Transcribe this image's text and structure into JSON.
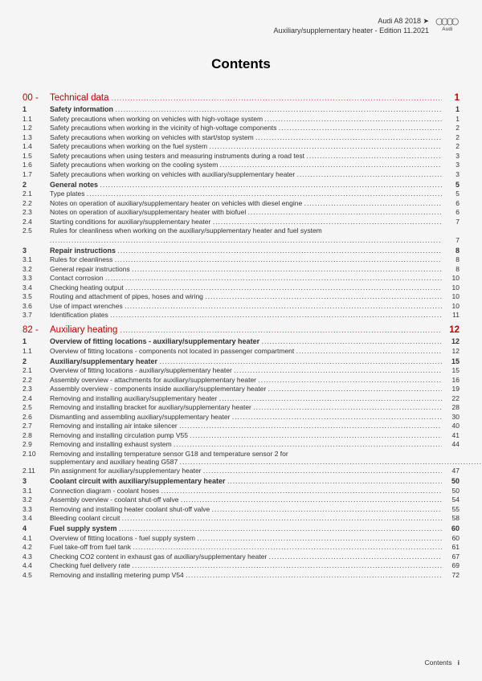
{
  "header": {
    "line1": "Audi A8 2018 ➤",
    "line2": "Auxiliary/supplementary heater - Edition 11.2021",
    "logo_label": "Audi"
  },
  "title": "Contents",
  "chapters": [
    {
      "label": "00 -",
      "title": "Technical data",
      "page": "1",
      "sections": [
        {
          "num": "1",
          "title": "Safety information",
          "page": "1",
          "items": [
            {
              "num": "1.1",
              "title": "Safety precautions when working on vehicles with high-voltage system",
              "page": "1"
            },
            {
              "num": "1.2",
              "title": "Safety precautions when working in the vicinity of high-voltage components",
              "page": "2"
            },
            {
              "num": "1.3",
              "title": "Safety precautions when working on vehicles with start/stop system",
              "page": "2"
            },
            {
              "num": "1.4",
              "title": "Safety precautions when working on the fuel system",
              "page": "2"
            },
            {
              "num": "1.5",
              "title": "Safety precautions when using testers and measuring instruments during a road test",
              "page": "3"
            },
            {
              "num": "1.6",
              "title": "Safety precautions when working on the cooling system",
              "page": "3"
            },
            {
              "num": "1.7",
              "title": "Safety precautions when working on vehicles with auxiliary/supplementary heater",
              "page": "3"
            }
          ]
        },
        {
          "num": "2",
          "title": "General notes",
          "page": "5",
          "items": [
            {
              "num": "2.1",
              "title": "Type plates",
              "page": "5"
            },
            {
              "num": "2.2",
              "title": "Notes on operation of auxiliary/supplementary heater on vehicles with diesel engine",
              "page": "6"
            },
            {
              "num": "2.3",
              "title": "Notes on operation of auxiliary/supplementary heater with biofuel",
              "page": "6"
            },
            {
              "num": "2.4",
              "title": "Starting conditions for auxiliary/supplementary heater",
              "page": "7"
            },
            {
              "num": "2.5",
              "title": "Rules for cleanliness when working on the auxiliary/supplementary heater and fuel system",
              "page": "7",
              "wrap": true
            }
          ]
        },
        {
          "num": "3",
          "title": "Repair instructions",
          "page": "8",
          "items": [
            {
              "num": "3.1",
              "title": "Rules for cleanliness",
              "page": "8"
            },
            {
              "num": "3.2",
              "title": "General repair instructions",
              "page": "8"
            },
            {
              "num": "3.3",
              "title": "Contact corrosion",
              "page": "10"
            },
            {
              "num": "3.4",
              "title": "Checking heating output",
              "page": "10"
            },
            {
              "num": "3.5",
              "title": "Routing and attachment of pipes, hoses and wiring",
              "page": "10"
            },
            {
              "num": "3.6",
              "title": "Use of impact wrenches",
              "page": "10"
            },
            {
              "num": "3.7",
              "title": "Identification plates",
              "page": "11"
            }
          ]
        }
      ]
    },
    {
      "label": "82 -",
      "title": "Auxiliary heating",
      "page": "12",
      "sections": [
        {
          "num": "1",
          "title": "Overview of fitting locations - auxiliary/supplementary heater",
          "page": "12",
          "items": [
            {
              "num": "1.1",
              "title": "Overview of fitting locations - components not located in passenger compartment",
              "page": "12"
            }
          ]
        },
        {
          "num": "2",
          "title": "Auxiliary/supplementary heater",
          "page": "15",
          "items": [
            {
              "num": "2.1",
              "title": "Overview of fitting locations - auxiliary/supplementary heater",
              "page": "15"
            },
            {
              "num": "2.2",
              "title": "Assembly overview - attachments for auxiliary/supplementary heater",
              "page": "16"
            },
            {
              "num": "2.3",
              "title": "Assembly overview - components inside auxiliary/supplementary heater",
              "page": "19"
            },
            {
              "num": "2.4",
              "title": "Removing and installing auxiliary/supplementary heater",
              "page": "22"
            },
            {
              "num": "2.5",
              "title": "Removing and installing bracket for auxiliary/supplementary heater",
              "page": "28"
            },
            {
              "num": "2.6",
              "title": "Dismantling and assembling auxiliary/supplementary heater",
              "page": "30"
            },
            {
              "num": "2.7",
              "title": "Removing and installing air intake silencer",
              "page": "40"
            },
            {
              "num": "2.8",
              "title": "Removing and installing circulation pump V55",
              "page": "41"
            },
            {
              "num": "2.9",
              "title": "Removing and installing exhaust system",
              "page": "44"
            },
            {
              "num": "2.10",
              "title": "Removing and installing temperature sensor G18 and temperature sensor 2 for supplementary and auxiliary heating G587",
              "page": "45",
              "wrap": true,
              "split": [
                "Removing and installing temperature sensor G18 and temperature sensor 2 for",
                "supplementary and auxiliary heating G587"
              ]
            },
            {
              "num": "2.11",
              "title": "Pin assignment for auxiliary/supplementary heater",
              "page": "47"
            }
          ]
        },
        {
          "num": "3",
          "title": "Coolant circuit with auxiliary/supplementary heater",
          "page": "50",
          "items": [
            {
              "num": "3.1",
              "title": "Connection diagram - coolant hoses",
              "page": "50"
            },
            {
              "num": "3.2",
              "title": "Assembly overview - coolant shut-off valve",
              "page": "54"
            },
            {
              "num": "3.3",
              "title": "Removing and installing heater coolant shut-off valve",
              "page": "55"
            },
            {
              "num": "3.4",
              "title": "Bleeding coolant circuit",
              "page": "58"
            }
          ]
        },
        {
          "num": "4",
          "title": "Fuel supply system",
          "page": "60",
          "items": [
            {
              "num": "4.1",
              "title": "Overview of fitting locations - fuel supply system",
              "page": "60"
            },
            {
              "num": "4.2",
              "title": "Fuel take-off from fuel tank",
              "page": "61"
            },
            {
              "num": "4.3",
              "title": "Checking CO2 content in exhaust gas of auxiliary/supplementary heater",
              "page": "67"
            },
            {
              "num": "4.4",
              "title": "Checking fuel delivery rate",
              "page": "69"
            },
            {
              "num": "4.5",
              "title": "Removing and installing metering pump V54",
              "page": "72"
            }
          ]
        }
      ]
    }
  ],
  "footer": {
    "label": "Contents",
    "page": "i"
  }
}
